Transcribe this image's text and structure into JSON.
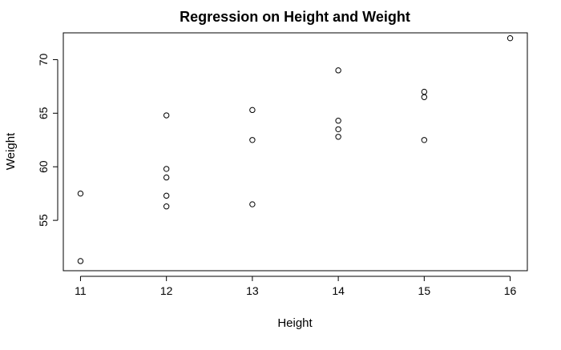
{
  "chart_data": {
    "type": "scatter",
    "title": "Regression on Height and Weight",
    "xlabel": "Height",
    "ylabel": "Weight",
    "xlim": [
      10.8,
      16.2
    ],
    "ylim": [
      50.3,
      72.5
    ],
    "xticks": [
      "11",
      "12",
      "13",
      "14",
      "15",
      "16"
    ],
    "yticks": [
      "55",
      "60",
      "65",
      "70"
    ],
    "grid": false,
    "legend": "none",
    "marker": "open-circle",
    "series": [
      {
        "points": [
          {
            "x": 11,
            "y": 57.5
          },
          {
            "x": 11,
            "y": 51.2
          },
          {
            "x": 12,
            "y": 64.8
          },
          {
            "x": 12,
            "y": 59.8
          },
          {
            "x": 12,
            "y": 59.0
          },
          {
            "x": 12,
            "y": 57.3
          },
          {
            "x": 12,
            "y": 56.3
          },
          {
            "x": 13,
            "y": 65.3
          },
          {
            "x": 13,
            "y": 62.5
          },
          {
            "x": 13,
            "y": 56.5
          },
          {
            "x": 14,
            "y": 69.0
          },
          {
            "x": 14,
            "y": 64.3
          },
          {
            "x": 14,
            "y": 63.5
          },
          {
            "x": 14,
            "y": 62.8
          },
          {
            "x": 15,
            "y": 67.0
          },
          {
            "x": 15,
            "y": 66.5
          },
          {
            "x": 15,
            "y": 62.5
          },
          {
            "x": 16,
            "y": 72.0
          }
        ]
      }
    ]
  }
}
